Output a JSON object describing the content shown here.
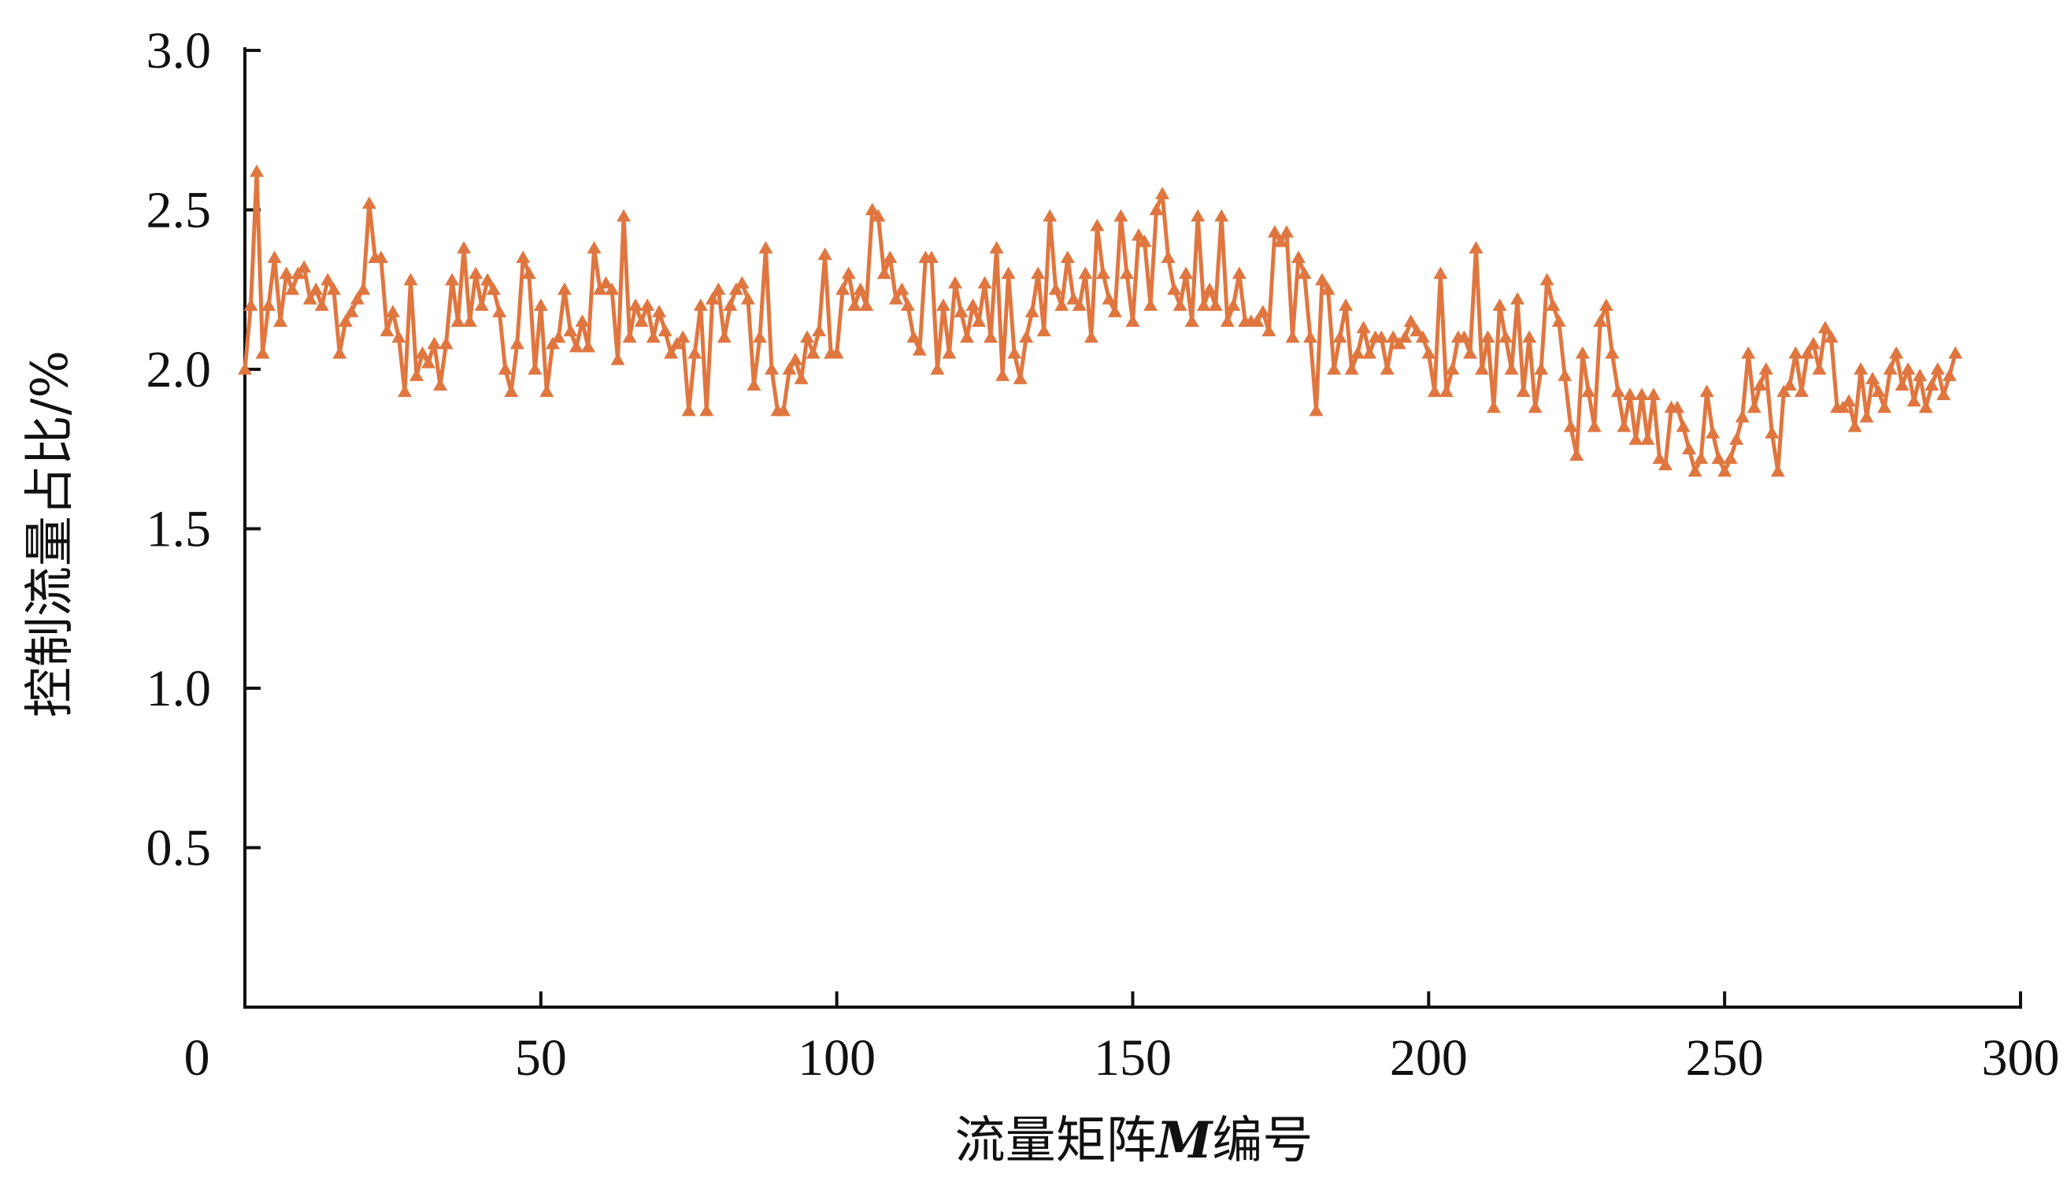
{
  "chart_data": {
    "type": "line",
    "title": "",
    "xlabel": "流量矩阵",
    "xlabel_var": "M",
    "xlabel_suffix": "编号",
    "ylabel": "控制流量占比/%",
    "xlim": [
      0,
      300
    ],
    "ylim": [
      0,
      3.0
    ],
    "xticks": [
      "0",
      "50",
      "100",
      "150",
      "200",
      "250",
      "300"
    ],
    "yticks": [
      "0.5",
      "1.0",
      "1.5",
      "2.0",
      "2.5",
      "3.0"
    ],
    "grid": false,
    "marker": "triangle",
    "color": "#E0763F",
    "x_start": 0,
    "x_step": 1,
    "values": [
      2.0,
      2.2,
      2.62,
      2.05,
      2.2,
      2.35,
      2.15,
      2.3,
      2.25,
      2.3,
      2.32,
      2.22,
      2.25,
      2.2,
      2.28,
      2.25,
      2.05,
      2.15,
      2.18,
      2.22,
      2.25,
      2.52,
      2.35,
      2.35,
      2.12,
      2.18,
      2.1,
      1.93,
      2.28,
      1.98,
      2.05,
      2.02,
      2.08,
      1.95,
      2.08,
      2.28,
      2.15,
      2.38,
      2.15,
      2.3,
      2.2,
      2.28,
      2.25,
      2.18,
      2.0,
      1.93,
      2.08,
      2.35,
      2.3,
      2.0,
      2.2,
      1.93,
      2.08,
      2.1,
      2.25,
      2.12,
      2.07,
      2.15,
      2.07,
      2.38,
      2.25,
      2.27,
      2.25,
      2.03,
      2.48,
      2.1,
      2.2,
      2.15,
      2.2,
      2.1,
      2.18,
      2.12,
      2.05,
      2.08,
      2.1,
      1.87,
      2.05,
      2.2,
      1.87,
      2.22,
      2.25,
      2.1,
      2.2,
      2.25,
      2.27,
      2.22,
      1.95,
      2.1,
      2.38,
      2.0,
      1.87,
      1.87,
      2.0,
      2.03,
      1.97,
      2.1,
      2.05,
      2.12,
      2.36,
      2.05,
      2.05,
      2.25,
      2.3,
      2.2,
      2.25,
      2.2,
      2.5,
      2.48,
      2.3,
      2.35,
      2.22,
      2.25,
      2.2,
      2.1,
      2.06,
      2.35,
      2.35,
      2.0,
      2.2,
      2.05,
      2.27,
      2.18,
      2.1,
      2.2,
      2.15,
      2.27,
      2.1,
      2.38,
      1.98,
      2.3,
      2.05,
      1.97,
      2.1,
      2.18,
      2.3,
      2.12,
      2.48,
      2.25,
      2.2,
      2.35,
      2.22,
      2.2,
      2.3,
      2.1,
      2.45,
      2.3,
      2.22,
      2.18,
      2.48,
      2.3,
      2.15,
      2.42,
      2.4,
      2.2,
      2.5,
      2.55,
      2.35,
      2.25,
      2.2,
      2.3,
      2.15,
      2.48,
      2.2,
      2.25,
      2.2,
      2.48,
      2.15,
      2.2,
      2.3,
      2.15,
      2.15,
      2.15,
      2.18,
      2.12,
      2.43,
      2.4,
      2.43,
      2.1,
      2.35,
      2.3,
      2.1,
      1.87,
      2.28,
      2.25,
      2.0,
      2.1,
      2.2,
      2.0,
      2.05,
      2.13,
      2.05,
      2.1,
      2.1,
      2.0,
      2.1,
      2.08,
      2.1,
      2.15,
      2.12,
      2.1,
      2.05,
      1.93,
      2.3,
      1.93,
      2.0,
      2.1,
      2.1,
      2.05,
      2.38,
      2.0,
      2.1,
      1.88,
      2.2,
      2.1,
      2.0,
      2.22,
      1.93,
      2.1,
      1.88,
      2.0,
      2.28,
      2.2,
      2.15,
      1.98,
      1.82,
      1.73,
      2.05,
      1.93,
      1.82,
      2.15,
      2.2,
      2.05,
      1.93,
      1.82,
      1.92,
      1.78,
      1.92,
      1.78,
      1.92,
      1.72,
      1.7,
      1.88,
      1.88,
      1.82,
      1.75,
      1.68,
      1.72,
      1.93,
      1.8,
      1.72,
      1.68,
      1.72,
      1.78,
      1.85,
      2.05,
      1.88,
      1.95,
      2.0,
      1.8,
      1.68,
      1.93,
      1.95,
      2.05,
      1.93,
      2.05,
      2.08,
      2.0,
      2.13,
      2.1,
      1.88,
      1.88,
      1.9,
      1.82,
      2.0,
      1.85,
      1.97,
      1.93,
      1.88,
      2.0,
      2.05,
      1.95,
      2.0,
      1.9,
      1.98,
      1.88,
      1.95,
      2.0,
      1.92,
      1.98,
      2.05
    ]
  }
}
